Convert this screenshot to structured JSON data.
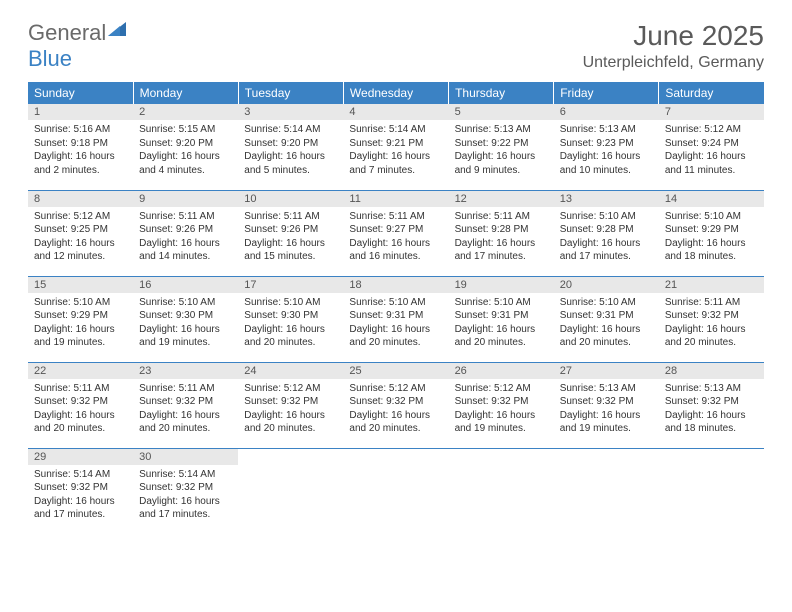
{
  "brand": {
    "part1": "General",
    "part2": "Blue"
  },
  "title": "June 2025",
  "location": "Unterpleichfeld, Germany",
  "colors": {
    "header_bg": "#3b82c4",
    "header_text": "#ffffff",
    "daynum_bg": "#e8e8e8",
    "border": "#3b82c4",
    "text": "#333333",
    "title_text": "#5a5a5a"
  },
  "day_headers": [
    "Sunday",
    "Monday",
    "Tuesday",
    "Wednesday",
    "Thursday",
    "Friday",
    "Saturday"
  ],
  "weeks": [
    [
      {
        "n": "1",
        "sr": "5:16 AM",
        "ss": "9:18 PM",
        "dl": "16 hours and 2 minutes."
      },
      {
        "n": "2",
        "sr": "5:15 AM",
        "ss": "9:20 PM",
        "dl": "16 hours and 4 minutes."
      },
      {
        "n": "3",
        "sr": "5:14 AM",
        "ss": "9:20 PM",
        "dl": "16 hours and 5 minutes."
      },
      {
        "n": "4",
        "sr": "5:14 AM",
        "ss": "9:21 PM",
        "dl": "16 hours and 7 minutes."
      },
      {
        "n": "5",
        "sr": "5:13 AM",
        "ss": "9:22 PM",
        "dl": "16 hours and 9 minutes."
      },
      {
        "n": "6",
        "sr": "5:13 AM",
        "ss": "9:23 PM",
        "dl": "16 hours and 10 minutes."
      },
      {
        "n": "7",
        "sr": "5:12 AM",
        "ss": "9:24 PM",
        "dl": "16 hours and 11 minutes."
      }
    ],
    [
      {
        "n": "8",
        "sr": "5:12 AM",
        "ss": "9:25 PM",
        "dl": "16 hours and 12 minutes."
      },
      {
        "n": "9",
        "sr": "5:11 AM",
        "ss": "9:26 PM",
        "dl": "16 hours and 14 minutes."
      },
      {
        "n": "10",
        "sr": "5:11 AM",
        "ss": "9:26 PM",
        "dl": "16 hours and 15 minutes."
      },
      {
        "n": "11",
        "sr": "5:11 AM",
        "ss": "9:27 PM",
        "dl": "16 hours and 16 minutes."
      },
      {
        "n": "12",
        "sr": "5:11 AM",
        "ss": "9:28 PM",
        "dl": "16 hours and 17 minutes."
      },
      {
        "n": "13",
        "sr": "5:10 AM",
        "ss": "9:28 PM",
        "dl": "16 hours and 17 minutes."
      },
      {
        "n": "14",
        "sr": "5:10 AM",
        "ss": "9:29 PM",
        "dl": "16 hours and 18 minutes."
      }
    ],
    [
      {
        "n": "15",
        "sr": "5:10 AM",
        "ss": "9:29 PM",
        "dl": "16 hours and 19 minutes."
      },
      {
        "n": "16",
        "sr": "5:10 AM",
        "ss": "9:30 PM",
        "dl": "16 hours and 19 minutes."
      },
      {
        "n": "17",
        "sr": "5:10 AM",
        "ss": "9:30 PM",
        "dl": "16 hours and 20 minutes."
      },
      {
        "n": "18",
        "sr": "5:10 AM",
        "ss": "9:31 PM",
        "dl": "16 hours and 20 minutes."
      },
      {
        "n": "19",
        "sr": "5:10 AM",
        "ss": "9:31 PM",
        "dl": "16 hours and 20 minutes."
      },
      {
        "n": "20",
        "sr": "5:10 AM",
        "ss": "9:31 PM",
        "dl": "16 hours and 20 minutes."
      },
      {
        "n": "21",
        "sr": "5:11 AM",
        "ss": "9:32 PM",
        "dl": "16 hours and 20 minutes."
      }
    ],
    [
      {
        "n": "22",
        "sr": "5:11 AM",
        "ss": "9:32 PM",
        "dl": "16 hours and 20 minutes."
      },
      {
        "n": "23",
        "sr": "5:11 AM",
        "ss": "9:32 PM",
        "dl": "16 hours and 20 minutes."
      },
      {
        "n": "24",
        "sr": "5:12 AM",
        "ss": "9:32 PM",
        "dl": "16 hours and 20 minutes."
      },
      {
        "n": "25",
        "sr": "5:12 AM",
        "ss": "9:32 PM",
        "dl": "16 hours and 20 minutes."
      },
      {
        "n": "26",
        "sr": "5:12 AM",
        "ss": "9:32 PM",
        "dl": "16 hours and 19 minutes."
      },
      {
        "n": "27",
        "sr": "5:13 AM",
        "ss": "9:32 PM",
        "dl": "16 hours and 19 minutes."
      },
      {
        "n": "28",
        "sr": "5:13 AM",
        "ss": "9:32 PM",
        "dl": "16 hours and 18 minutes."
      }
    ],
    [
      {
        "n": "29",
        "sr": "5:14 AM",
        "ss": "9:32 PM",
        "dl": "16 hours and 17 minutes."
      },
      {
        "n": "30",
        "sr": "5:14 AM",
        "ss": "9:32 PM",
        "dl": "16 hours and 17 minutes."
      },
      null,
      null,
      null,
      null,
      null
    ]
  ],
  "labels": {
    "sunrise": "Sunrise:",
    "sunset": "Sunset:",
    "daylight": "Daylight:"
  }
}
